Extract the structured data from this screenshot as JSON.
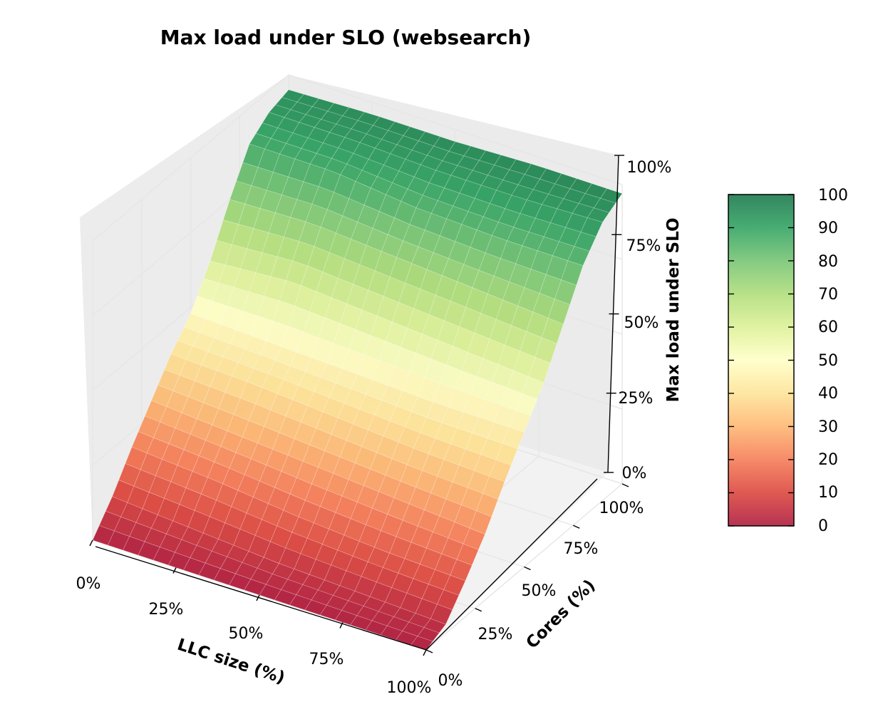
{
  "chart_data": {
    "type": "surface",
    "title": "Max load under SLO (websearch)",
    "xlabel": "LLC size (%)",
    "ylabel": "Cores (%)",
    "zlabel": "Max load under SLO",
    "x_ticks": [
      "0%",
      "25%",
      "50%",
      "75%",
      "100%"
    ],
    "y_ticks": [
      "0%",
      "25%",
      "50%",
      "75%",
      "100%"
    ],
    "z_ticks": [
      "0%",
      "25%",
      "50%",
      "75%",
      "100%"
    ],
    "xlim": [
      0,
      100
    ],
    "ylim": [
      0,
      100
    ],
    "zlim": [
      0,
      100
    ],
    "grid": true,
    "colormap": "RdYlGn",
    "colorbar": {
      "ticks": [
        "0",
        "10",
        "20",
        "30",
        "40",
        "50",
        "60",
        "70",
        "80",
        "90",
        "100"
      ],
      "range": [
        0,
        100
      ]
    },
    "llc_size_pct": [
      0,
      25,
      50,
      75,
      100
    ],
    "cores_pct": [
      0,
      10,
      20,
      30,
      40,
      50,
      60,
      70,
      80,
      90,
      100
    ],
    "max_load_pct": [
      [
        0,
        9,
        20,
        30,
        40,
        48,
        60,
        75,
        88,
        93,
        95
      ],
      [
        0,
        7,
        18,
        28,
        39,
        47,
        62,
        76,
        88,
        93,
        96
      ],
      [
        0,
        5,
        15,
        26,
        37,
        46,
        60,
        74,
        85,
        92,
        96
      ],
      [
        0,
        4,
        13,
        24,
        35,
        45,
        58,
        72,
        84,
        92,
        97
      ],
      [
        0,
        3,
        12,
        22,
        34,
        45,
        56,
        70,
        84,
        93,
        97
      ]
    ]
  }
}
